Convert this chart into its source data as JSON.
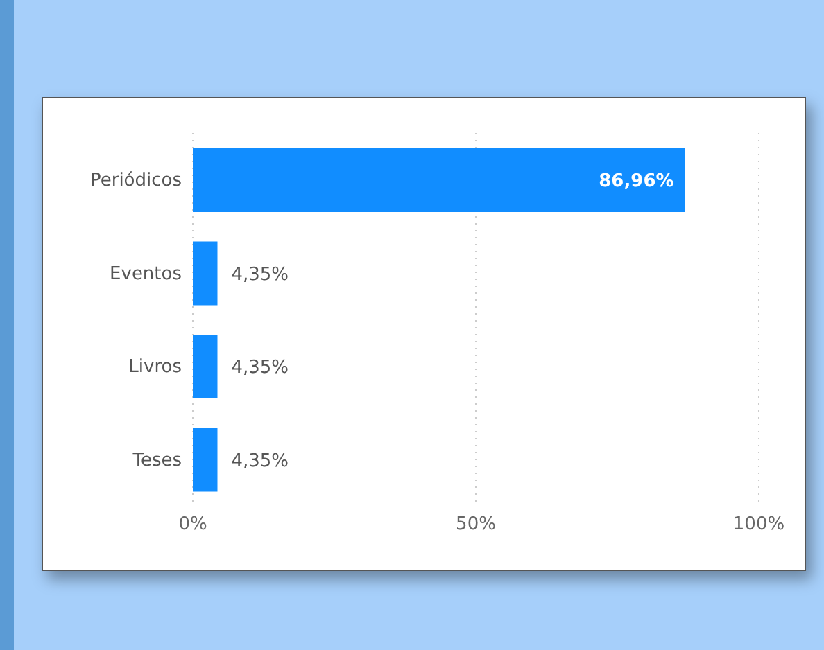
{
  "chart_data": {
    "type": "bar",
    "orientation": "horizontal",
    "categories": [
      "Periódicos",
      "Eventos",
      "Livros",
      "Teses"
    ],
    "values": [
      86.96,
      4.35,
      4.35,
      4.35
    ],
    "color": "#118dff",
    "value_labels": [
      "86,96%",
      "4,35%",
      "4,35%",
      "4,35%"
    ],
    "xlim": [
      0,
      100
    ],
    "xticks": [
      {
        "value": 0,
        "label": "0%"
      },
      {
        "value": 50,
        "label": "50%"
      },
      {
        "value": 100,
        "label": "100%"
      }
    ],
    "grid": "x"
  }
}
